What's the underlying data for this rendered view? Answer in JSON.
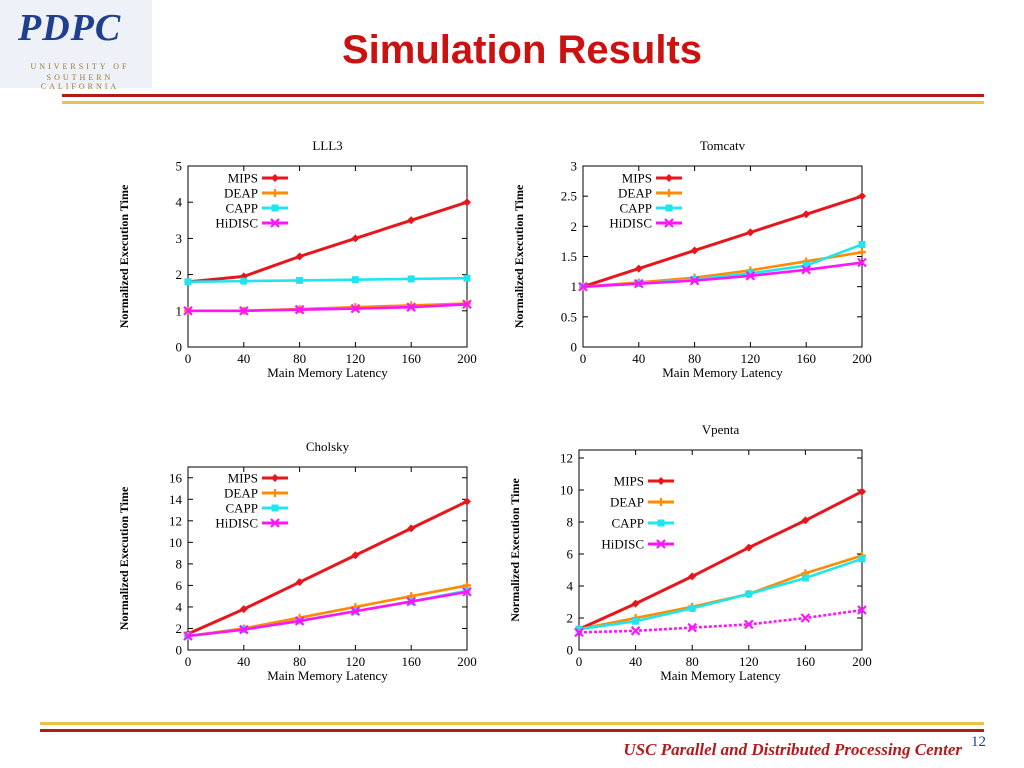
{
  "logo": {
    "word": "PDPC",
    "line1": "UNIVERSITY OF",
    "line2": "SOUTHERN CALIFORNIA"
  },
  "slide": {
    "title": "Simulation Results",
    "footer": "USC Parallel and Distributed Processing Center",
    "page_number": "12"
  },
  "colors": {
    "MIPS": "#e8161b",
    "DEAP": "#ff8c00",
    "CAPP": "#1fe6ec",
    "HiDISC": "#ff14ff"
  },
  "chart_data": [
    {
      "type": "line",
      "title": "LLL3",
      "xlabel": "Main Memory Latency",
      "ylabel": "Normalized Execution Time",
      "x": [
        0,
        40,
        80,
        120,
        160,
        200
      ],
      "xlim": [
        0,
        200
      ],
      "ylim": [
        0,
        5
      ],
      "yticks": [
        "0",
        "1",
        "2",
        "3",
        "4",
        "5"
      ],
      "xticks": [
        "0",
        "40",
        "80",
        "120",
        "160",
        "200"
      ],
      "legend": "top-left",
      "series": [
        {
          "name": "MIPS",
          "values": [
            1.8,
            1.95,
            2.5,
            3.0,
            3.5,
            4.0
          ]
        },
        {
          "name": "DEAP",
          "values": [
            1.0,
            1.0,
            1.05,
            1.1,
            1.15,
            1.2
          ]
        },
        {
          "name": "CAPP",
          "values": [
            1.8,
            1.82,
            1.84,
            1.86,
            1.88,
            1.9
          ]
        },
        {
          "name": "HiDISC",
          "values": [
            1.0,
            1.0,
            1.03,
            1.06,
            1.1,
            1.18
          ]
        }
      ]
    },
    {
      "type": "line",
      "title": "Tomcatv",
      "xlabel": "Main Memory Latency",
      "ylabel": "Normalized Execution Time",
      "x": [
        0,
        40,
        80,
        120,
        160,
        200
      ],
      "xlim": [
        0,
        200
      ],
      "ylim": [
        0,
        3
      ],
      "yticks": [
        "0",
        "0.5",
        "1",
        "1.5",
        "2",
        "2.5",
        "3"
      ],
      "xticks": [
        "0",
        "40",
        "80",
        "120",
        "160",
        "200"
      ],
      "legend": "top-left",
      "series": [
        {
          "name": "MIPS",
          "values": [
            1.0,
            1.3,
            1.6,
            1.9,
            2.2,
            2.5
          ]
        },
        {
          "name": "DEAP",
          "values": [
            1.0,
            1.07,
            1.15,
            1.27,
            1.42,
            1.57
          ]
        },
        {
          "name": "CAPP",
          "values": [
            1.0,
            1.05,
            1.12,
            1.22,
            1.35,
            1.7
          ]
        },
        {
          "name": "HiDISC",
          "values": [
            1.0,
            1.05,
            1.1,
            1.18,
            1.28,
            1.4
          ]
        }
      ]
    },
    {
      "type": "line",
      "title": "Cholsky",
      "xlabel": "Main Memory Latency",
      "ylabel": "Normalized Execution Time",
      "x": [
        0,
        40,
        80,
        120,
        160,
        200
      ],
      "xlim": [
        0,
        200
      ],
      "ylim": [
        0,
        17
      ],
      "yticks": [
        "0",
        "2",
        "4",
        "6",
        "8",
        "10",
        "12",
        "14",
        "16"
      ],
      "xticks": [
        "0",
        "40",
        "80",
        "120",
        "160",
        "200"
      ],
      "legend": "top-left",
      "series": [
        {
          "name": "MIPS",
          "values": [
            1.5,
            3.8,
            6.3,
            8.8,
            11.3,
            13.8
          ]
        },
        {
          "name": "DEAP",
          "values": [
            1.3,
            2.0,
            3.0,
            4.0,
            5.0,
            6.0
          ]
        },
        {
          "name": "CAPP",
          "values": [
            1.3,
            1.9,
            2.7,
            3.6,
            4.5,
            5.5
          ]
        },
        {
          "name": "HiDISC",
          "values": [
            1.3,
            1.9,
            2.7,
            3.6,
            4.5,
            5.4
          ]
        }
      ]
    },
    {
      "type": "line",
      "title": "Vpenta",
      "xlabel": "Main Memory Latency",
      "ylabel": "Normalized Execution Time",
      "x": [
        0,
        40,
        80,
        120,
        160,
        200
      ],
      "xlim": [
        0,
        200
      ],
      "ylim": [
        0,
        12.5
      ],
      "yticks": [
        "0",
        "2",
        "4",
        "6",
        "8",
        "10",
        "12"
      ],
      "xticks": [
        "0",
        "40",
        "80",
        "120",
        "160",
        "200"
      ],
      "legend": "top-left",
      "series": [
        {
          "name": "MIPS",
          "values": [
            1.3,
            2.9,
            4.6,
            6.4,
            8.1,
            9.9
          ]
        },
        {
          "name": "DEAP",
          "values": [
            1.3,
            2.0,
            2.7,
            3.5,
            4.8,
            5.9
          ]
        },
        {
          "name": "CAPP",
          "values": [
            1.3,
            1.8,
            2.6,
            3.5,
            4.5,
            5.7
          ]
        },
        {
          "name": "HiDISC",
          "values": [
            1.1,
            1.2,
            1.4,
            1.6,
            2.0,
            2.5
          ]
        }
      ]
    }
  ]
}
